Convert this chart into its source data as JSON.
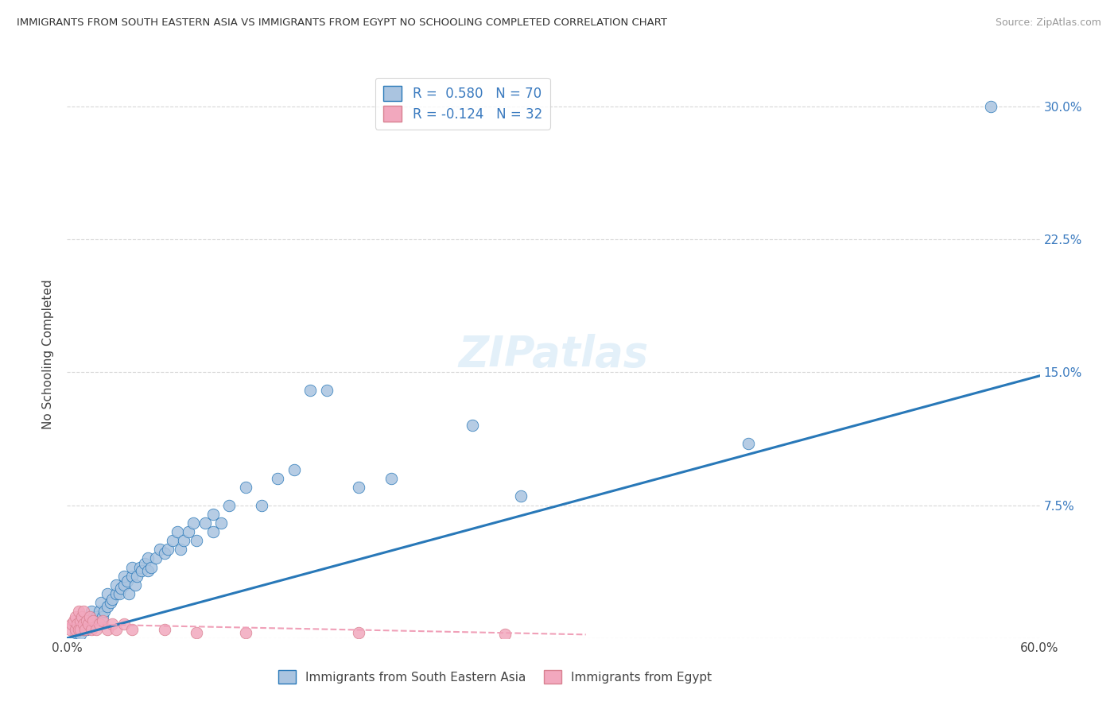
{
  "title": "IMMIGRANTS FROM SOUTH EASTERN ASIA VS IMMIGRANTS FROM EGYPT NO SCHOOLING COMPLETED CORRELATION CHART",
  "source": "Source: ZipAtlas.com",
  "ylabel": "No Schooling Completed",
  "xlim": [
    0.0,
    0.6
  ],
  "ylim": [
    0.0,
    0.32
  ],
  "r_blue": 0.58,
  "n_blue": 70,
  "r_pink": -0.124,
  "n_pink": 32,
  "legend_labels": [
    "Immigrants from South Eastern Asia",
    "Immigrants from Egypt"
  ],
  "blue_color": "#aac4e0",
  "pink_color": "#f2a8be",
  "blue_line_color": "#2878b8",
  "pink_line_color": "#f0a0b8",
  "blue_line_x": [
    0.0,
    0.6
  ],
  "blue_line_y": [
    0.0,
    0.148
  ],
  "pink_line_x": [
    0.0,
    0.32
  ],
  "pink_line_y": [
    0.008,
    0.002
  ],
  "blue_scatter": [
    [
      0.005,
      0.003
    ],
    [
      0.007,
      0.005
    ],
    [
      0.008,
      0.002
    ],
    [
      0.009,
      0.008
    ],
    [
      0.01,
      0.005
    ],
    [
      0.01,
      0.01
    ],
    [
      0.012,
      0.005
    ],
    [
      0.012,
      0.01
    ],
    [
      0.013,
      0.008
    ],
    [
      0.014,
      0.012
    ],
    [
      0.015,
      0.008
    ],
    [
      0.015,
      0.015
    ],
    [
      0.016,
      0.01
    ],
    [
      0.017,
      0.01
    ],
    [
      0.018,
      0.012
    ],
    [
      0.019,
      0.008
    ],
    [
      0.02,
      0.015
    ],
    [
      0.021,
      0.02
    ],
    [
      0.022,
      0.012
    ],
    [
      0.023,
      0.015
    ],
    [
      0.025,
      0.018
    ],
    [
      0.025,
      0.025
    ],
    [
      0.027,
      0.02
    ],
    [
      0.028,
      0.022
    ],
    [
      0.03,
      0.025
    ],
    [
      0.03,
      0.03
    ],
    [
      0.032,
      0.025
    ],
    [
      0.033,
      0.028
    ],
    [
      0.035,
      0.03
    ],
    [
      0.035,
      0.035
    ],
    [
      0.037,
      0.032
    ],
    [
      0.038,
      0.025
    ],
    [
      0.04,
      0.035
    ],
    [
      0.04,
      0.04
    ],
    [
      0.042,
      0.03
    ],
    [
      0.043,
      0.035
    ],
    [
      0.045,
      0.04
    ],
    [
      0.046,
      0.038
    ],
    [
      0.048,
      0.042
    ],
    [
      0.05,
      0.045
    ],
    [
      0.05,
      0.038
    ],
    [
      0.052,
      0.04
    ],
    [
      0.055,
      0.045
    ],
    [
      0.057,
      0.05
    ],
    [
      0.06,
      0.048
    ],
    [
      0.062,
      0.05
    ],
    [
      0.065,
      0.055
    ],
    [
      0.068,
      0.06
    ],
    [
      0.07,
      0.05
    ],
    [
      0.072,
      0.055
    ],
    [
      0.075,
      0.06
    ],
    [
      0.078,
      0.065
    ],
    [
      0.08,
      0.055
    ],
    [
      0.085,
      0.065
    ],
    [
      0.09,
      0.07
    ],
    [
      0.09,
      0.06
    ],
    [
      0.095,
      0.065
    ],
    [
      0.1,
      0.075
    ],
    [
      0.11,
      0.085
    ],
    [
      0.12,
      0.075
    ],
    [
      0.13,
      0.09
    ],
    [
      0.14,
      0.095
    ],
    [
      0.15,
      0.14
    ],
    [
      0.16,
      0.14
    ],
    [
      0.18,
      0.085
    ],
    [
      0.2,
      0.09
    ],
    [
      0.25,
      0.12
    ],
    [
      0.28,
      0.08
    ],
    [
      0.42,
      0.11
    ],
    [
      0.57,
      0.3
    ]
  ],
  "pink_scatter": [
    [
      0.002,
      0.005
    ],
    [
      0.003,
      0.008
    ],
    [
      0.004,
      0.01
    ],
    [
      0.005,
      0.005
    ],
    [
      0.005,
      0.012
    ],
    [
      0.006,
      0.008
    ],
    [
      0.007,
      0.005
    ],
    [
      0.007,
      0.015
    ],
    [
      0.008,
      0.01
    ],
    [
      0.008,
      0.005
    ],
    [
      0.009,
      0.012
    ],
    [
      0.01,
      0.008
    ],
    [
      0.01,
      0.015
    ],
    [
      0.011,
      0.005
    ],
    [
      0.012,
      0.01
    ],
    [
      0.013,
      0.008
    ],
    [
      0.014,
      0.012
    ],
    [
      0.015,
      0.005
    ],
    [
      0.016,
      0.01
    ],
    [
      0.018,
      0.005
    ],
    [
      0.02,
      0.008
    ],
    [
      0.022,
      0.01
    ],
    [
      0.025,
      0.005
    ],
    [
      0.028,
      0.008
    ],
    [
      0.03,
      0.005
    ],
    [
      0.035,
      0.008
    ],
    [
      0.04,
      0.005
    ],
    [
      0.06,
      0.005
    ],
    [
      0.08,
      0.003
    ],
    [
      0.11,
      0.003
    ],
    [
      0.18,
      0.003
    ],
    [
      0.27,
      0.002
    ]
  ],
  "watermark_text": "ZIPatlas",
  "background_color": "#ffffff",
  "grid_color": "#d8d8d8"
}
